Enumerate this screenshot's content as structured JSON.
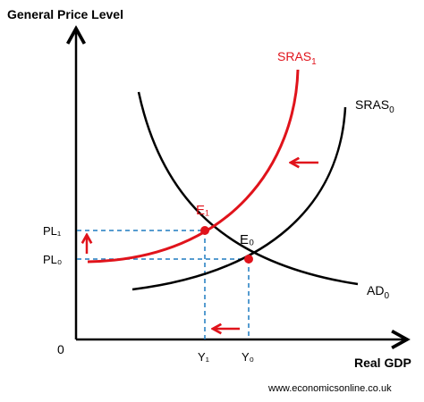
{
  "labels": {
    "y_axis": "General Price Level",
    "x_axis": "Real GDP",
    "origin": "0",
    "sras1_main": "SRAS",
    "sras1_sub": "1",
    "sras0_main": "SRAS",
    "sras0_sub": "0",
    "ad0_main": "AD",
    "ad0_sub": "0",
    "e1": "E₁",
    "e0": "E₀",
    "pl1": "PL₁",
    "pl0": "PL₀",
    "y1": "Y₁",
    "y0": "Y₀",
    "source": "www.economicsonline.co.uk"
  },
  "colors": {
    "axis": "#000000",
    "curve_black": "#000000",
    "curve_red": "#e0131b",
    "guide_blue": "#1f7bc1",
    "arrow_red": "#e0131b"
  },
  "icons": {
    "arrow_shift_left": "arrow-left-icon",
    "arrow_price_up": "arrow-up-icon",
    "arrow_output_left": "arrow-left-icon"
  }
}
